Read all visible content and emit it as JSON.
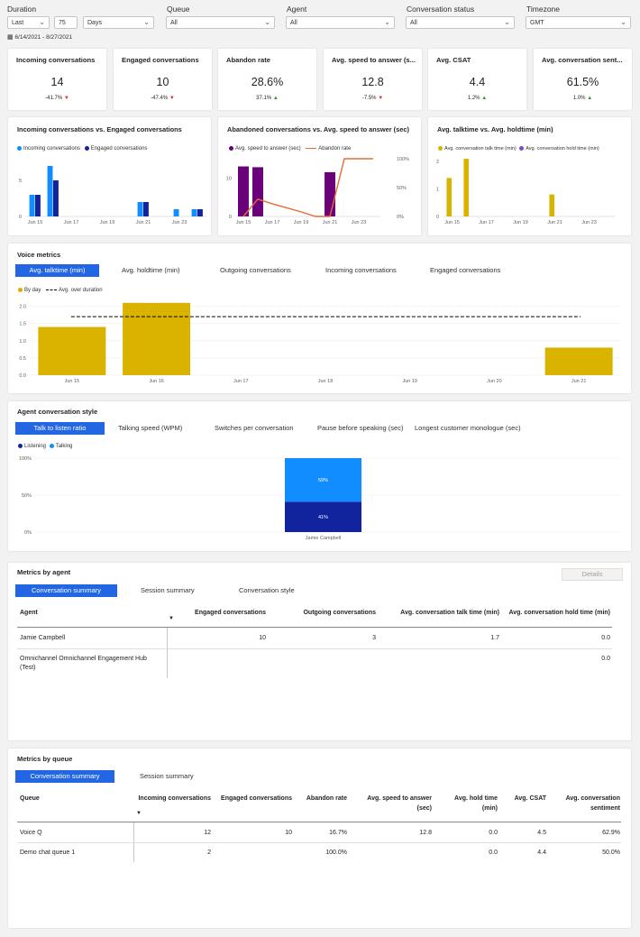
{
  "filters": {
    "duration": {
      "label": "Duration",
      "mode": "Last",
      "count": "75",
      "unit": "Days",
      "range": "6/14/2021 - 8/27/2021"
    },
    "queue": {
      "label": "Queue",
      "value": "All"
    },
    "agent": {
      "label": "Agent",
      "value": "All"
    },
    "status": {
      "label": "Conversation status",
      "value": "All"
    },
    "timezone": {
      "label": "Timezone",
      "value": "GMT"
    }
  },
  "kpis": [
    {
      "title": "Incoming conversations",
      "value": "14",
      "delta": "-41.7%",
      "dir": "down"
    },
    {
      "title": "Engaged conversations",
      "value": "10",
      "delta": "-47.4%",
      "dir": "down"
    },
    {
      "title": "Abandon rate",
      "value": "28.6%",
      "delta": "37.1%",
      "dir": "up"
    },
    {
      "title": "Avg. speed to answer (s...",
      "value": "12.8",
      "delta": "-7.5%",
      "dir": "down"
    },
    {
      "title": "Avg. CSAT",
      "value": "4.4",
      "delta": "1.2%",
      "dir": "up"
    },
    {
      "title": "Avg. conversation sent...",
      "value": "61.5%",
      "delta": "1.0%",
      "dir": "up"
    }
  ],
  "colors": {
    "accent": "#2266e3",
    "incoming": "#118dff",
    "engaged": "#12239e",
    "speed": "#6b007b",
    "abandon": "#e66c37",
    "gold": "#d9b300",
    "hold": "#744ec2",
    "up": "#2b9a3c",
    "down": "#d13438"
  },
  "chart_data": [
    {
      "type": "bar",
      "title": "Incoming conversations vs. Engaged conversations",
      "categories": [
        "Jun 15",
        "Jun 16",
        "Jun 17",
        "Jun 18",
        "Jun 19",
        "Jun 20",
        "Jun 21",
        "Jun 22",
        "Jun 23",
        "Jun 24"
      ],
      "x_tick_labels": [
        "Jun 15",
        "Jun 17",
        "Jun 19",
        "Jun 21",
        "Jun 23"
      ],
      "series": [
        {
          "name": "Incoming conversations",
          "values": [
            3,
            7,
            0,
            0,
            0,
            0,
            2,
            0,
            1,
            1
          ]
        },
        {
          "name": "Engaged conversations",
          "values": [
            3,
            5,
            0,
            0,
            0,
            0,
            2,
            0,
            0,
            1
          ]
        }
      ],
      "y_ticks": [
        "0",
        "5"
      ],
      "ylim": [
        0,
        7.5
      ]
    },
    {
      "type": "bar",
      "title": "Abandoned conversations vs. Avg. speed to answer (sec)",
      "categories": [
        "Jun 15",
        "Jun 16",
        "Jun 17",
        "Jun 18",
        "Jun 19",
        "Jun 20",
        "Jun 21",
        "Jun 22",
        "Jun 23",
        "Jun 24"
      ],
      "x_tick_labels": [
        "Jun 15",
        "Jun 17",
        "Jun 19",
        "Jun 21",
        "Jun 23"
      ],
      "series": [
        {
          "name": "Avg. speed to answer (sec)",
          "type": "bar",
          "values": [
            13,
            12.8,
            0,
            0,
            0,
            0,
            11.5,
            0,
            0,
            0
          ]
        },
        {
          "name": "Abandon rate",
          "type": "line",
          "axis": "right",
          "values": [
            0,
            30,
            22,
            15,
            8,
            0,
            0,
            100,
            100,
            100
          ]
        }
      ],
      "y_ticks": [
        "0",
        "10"
      ],
      "ylim": [
        0,
        15
      ],
      "y2_ticks": [
        "0%",
        "50%",
        "100%"
      ],
      "y2lim": [
        0,
        100
      ]
    },
    {
      "type": "bar",
      "title": "Avg. talktime vs. Avg. holdtime (min)",
      "categories": [
        "Jun 15",
        "Jun 16",
        "Jun 17",
        "Jun 18",
        "Jun 19",
        "Jun 20",
        "Jun 21",
        "Jun 22",
        "Jun 23",
        "Jun 24"
      ],
      "x_tick_labels": [
        "Jun 15",
        "Jun 17",
        "Jun 19",
        "Jun 21",
        "Jun 23"
      ],
      "series": [
        {
          "name": "Avg. conversation talk time (min)",
          "values": [
            1.4,
            2.1,
            0,
            0,
            0,
            0,
            0.8,
            0,
            0,
            0
          ]
        },
        {
          "name": "Avg. conversation hold time (min)",
          "values": [
            0,
            0,
            0,
            0,
            0,
            0,
            0,
            0,
            0,
            0
          ]
        }
      ],
      "y_ticks": [
        "0",
        "1",
        "2"
      ],
      "ylim": [
        0,
        2.3
      ]
    },
    {
      "type": "bar",
      "title": "Avg. talktime (min)",
      "categories": [
        "Jun 15",
        "Jun 16",
        "Jun 17",
        "Jun 18",
        "Jun 19",
        "Jun 20",
        "Jun 21"
      ],
      "series": [
        {
          "name": "By day",
          "values": [
            1.4,
            2.1,
            0,
            0,
            0,
            0,
            0.8
          ]
        },
        {
          "name": "Avg. over duration",
          "type": "line",
          "value": 1.7
        }
      ],
      "y_ticks": [
        "0.0",
        "0.5",
        "1.0",
        "1.5",
        "2.0"
      ],
      "ylim": [
        0,
        2.2
      ]
    },
    {
      "type": "bar",
      "title": "Talk to listen ratio",
      "categories": [
        "Jamie Campbell"
      ],
      "series": [
        {
          "name": "Listening",
          "values": [
            41
          ]
        },
        {
          "name": "Talking",
          "values": [
            59
          ]
        }
      ],
      "data_labels": [
        "41%",
        "59%"
      ],
      "y_ticks": [
        "0%",
        "50%",
        "100%"
      ],
      "ylim": [
        0,
        100
      ],
      "stacked": true
    }
  ],
  "voice": {
    "title": "Voice metrics",
    "tabs": [
      "Avg. talktime (min)",
      "Avg. holdtime (min)",
      "Outgoing conversations",
      "Incoming conversations",
      "Engaged conversations"
    ],
    "legend": [
      "By day",
      "Avg. over duration"
    ]
  },
  "style": {
    "title": "Agent conversation style",
    "tabs": [
      "Talk to listen ratio",
      "Talking speed (WPM)",
      "Switches per conversation",
      "Pause before speaking (sec)",
      "Longest customer monologue (sec)"
    ],
    "legend": [
      "Listening",
      "Talking"
    ]
  },
  "agent_table": {
    "title": "Metrics by agent",
    "details": "Details",
    "tabs": [
      "Conversation summary",
      "Session summary",
      "Conversation style"
    ],
    "headers": [
      "Agent",
      "Engaged conversations",
      "Outgoing conversations",
      "Avg. conversation talk time (min)",
      "Avg. conversation hold time (min)"
    ],
    "rows": [
      [
        "Jamie Campbell",
        "10",
        "3",
        "1.7",
        "0.0"
      ],
      [
        "Omnichannel Omnichannel Engagement Hub",
        "",
        "",
        "",
        "0.0"
      ]
    ],
    "row2_line2": "(Test)"
  },
  "queue_table": {
    "title": "Metrics by queue",
    "tabs": [
      "Conversation summary",
      "Session summary"
    ],
    "headers": [
      "Queue",
      "Incoming conversations",
      "Engaged conversations",
      "Abandon rate",
      "Avg. speed to answer",
      "Avg. hold time",
      "Avg. CSAT",
      "Avg. conversation"
    ],
    "headers_line2": [
      "",
      "",
      "",
      "",
      "(sec)",
      "(min)",
      "",
      "sentiment"
    ],
    "rows": [
      [
        "Voice Q",
        "12",
        "10",
        "16.7%",
        "12.8",
        "0.0",
        "4.5",
        "62.9%"
      ],
      [
        "Demo chat queue 1",
        "2",
        "",
        "100.0%",
        "",
        "0.0",
        "4.4",
        "50.0%"
      ]
    ]
  }
}
